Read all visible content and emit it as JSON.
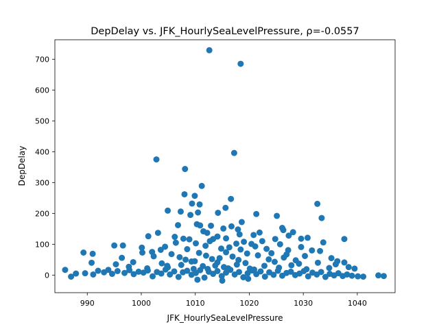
{
  "chart_data": {
    "type": "scatter",
    "title": "DepDelay vs. JFK_HourlySeaLevelPressure, ρ=-0.0557",
    "xlabel": "JFK_HourlySeaLevelPressure",
    "ylabel": "DepDelay",
    "xlim": [
      984.0,
      1047.0
    ],
    "ylim": [
      -57.0,
      763.0
    ],
    "xticks": [
      990,
      1000,
      1010,
      1020,
      1030,
      1040
    ],
    "yticks": [
      0,
      100,
      200,
      300,
      400,
      500,
      600,
      700
    ],
    "grid": false,
    "legend": "none",
    "marker_color": "#1f77b4",
    "points": [
      [
        1012.6,
        729
      ],
      [
        1018.4,
        685
      ],
      [
        1017.2,
        396
      ],
      [
        1002.8,
        375
      ],
      [
        1008.1,
        344
      ],
      [
        1011.2,
        289
      ],
      [
        1008.0,
        262
      ],
      [
        1009.9,
        257
      ],
      [
        1016.6,
        247
      ],
      [
        1009.4,
        232
      ],
      [
        1010.8,
        229
      ],
      [
        1032.6,
        231
      ],
      [
        1015.6,
        218
      ],
      [
        1004.9,
        209
      ],
      [
        1007.3,
        206
      ],
      [
        1010.5,
        203
      ],
      [
        1014.2,
        202
      ],
      [
        1021.3,
        198
      ],
      [
        1025.1,
        192
      ],
      [
        1009.1,
        195
      ],
      [
        1033.4,
        185
      ],
      [
        1018.6,
        172
      ],
      [
        1010.3,
        165
      ],
      [
        1006.8,
        162
      ],
      [
        1010.9,
        161
      ],
      [
        1012.9,
        160
      ],
      [
        1016.7,
        158
      ],
      [
        1015.2,
        151
      ],
      [
        1026.1,
        153
      ],
      [
        1017.9,
        148
      ],
      [
        1026.3,
        146
      ],
      [
        1011.5,
        142
      ],
      [
        1028.1,
        139
      ],
      [
        1003.1,
        137
      ],
      [
        1012.2,
        137
      ],
      [
        1021.9,
        138
      ],
      [
        1018.2,
        132
      ],
      [
        1020.8,
        130
      ],
      [
        1027.3,
        128
      ],
      [
        1001.3,
        126
      ],
      [
        1006.2,
        124
      ],
      [
        1014.1,
        125
      ],
      [
        1007.8,
        118
      ],
      [
        1008.9,
        116
      ],
      [
        1013.3,
        117
      ],
      [
        1015.7,
        119
      ],
      [
        1024.8,
        117
      ],
      [
        1029.6,
        118
      ],
      [
        1030.8,
        121
      ],
      [
        1037.6,
        117
      ],
      [
        1012.7,
        110
      ],
      [
        1019.0,
        108
      ],
      [
        1022.4,
        110
      ],
      [
        1006.4,
        105
      ],
      [
        1010.1,
        103
      ],
      [
        1017.6,
        102
      ],
      [
        1020.4,
        101
      ],
      [
        1025.7,
        100
      ],
      [
        1033.7,
        106
      ],
      [
        995.0,
        96
      ],
      [
        996.6,
        96
      ],
      [
        1000.1,
        89
      ],
      [
        1004.4,
        92
      ],
      [
        1011.9,
        95
      ],
      [
        1016.3,
        90
      ],
      [
        1021.1,
        93
      ],
      [
        1029.6,
        91
      ],
      [
        1003.6,
        82
      ],
      [
        1008.5,
        84
      ],
      [
        1014.8,
        86
      ],
      [
        1018.4,
        83
      ],
      [
        1023.2,
        85
      ],
      [
        1027.2,
        81
      ],
      [
        1031.6,
        80
      ],
      [
        1033.1,
        78
      ],
      [
        989.3,
        73
      ],
      [
        991.0,
        69
      ],
      [
        1000.2,
        73
      ],
      [
        1002.0,
        75
      ],
      [
        1005.6,
        68
      ],
      [
        1010.7,
        72
      ],
      [
        1015.7,
        74
      ],
      [
        1019.6,
        70
      ],
      [
        1024.1,
        71
      ],
      [
        1026.9,
        67
      ],
      [
        996.4,
        56
      ],
      [
        1002.3,
        61
      ],
      [
        1007.1,
        58
      ],
      [
        1012.0,
        63
      ],
      [
        1016.9,
        60
      ],
      [
        1021.6,
        64
      ],
      [
        1026.4,
        57
      ],
      [
        1030.3,
        62
      ],
      [
        1035.2,
        55
      ],
      [
        990.8,
        40
      ],
      [
        995.3,
        35
      ],
      [
        998.5,
        42
      ],
      [
        1003.8,
        38
      ],
      [
        1009.3,
        44
      ],
      [
        1014.1,
        41
      ],
      [
        1019.3,
        39
      ],
      [
        1024.7,
        43
      ],
      [
        1029.2,
        37
      ],
      [
        1032.7,
        40
      ],
      [
        1036.3,
        45
      ],
      [
        1037.6,
        41
      ],
      [
        1036.0,
        35
      ],
      [
        997.7,
        27
      ],
      [
        1001.1,
        22
      ],
      [
        1004.9,
        25
      ],
      [
        1009.7,
        20
      ],
      [
        1015.3,
        26
      ],
      [
        1020.1,
        21
      ],
      [
        1025.5,
        24
      ],
      [
        1030.6,
        19
      ],
      [
        1034.8,
        23
      ],
      [
        1038.4,
        26
      ],
      [
        1039.5,
        21
      ],
      [
        985.9,
        17
      ],
      [
        987.9,
        5
      ],
      [
        987.0,
        -5
      ],
      [
        989.6,
        6
      ],
      [
        991.1,
        2
      ],
      [
        992.0,
        14
      ],
      [
        993.1,
        9
      ],
      [
        993.9,
        17
      ],
      [
        994.6,
        4
      ],
      [
        995.6,
        13
      ],
      [
        996.9,
        7
      ],
      [
        997.8,
        16
      ],
      [
        998.6,
        3
      ],
      [
        999.5,
        11
      ],
      [
        1000.4,
        8
      ],
      [
        1001.2,
        15
      ],
      [
        1002.1,
        -4
      ],
      [
        1002.9,
        10
      ],
      [
        1003.7,
        5
      ],
      [
        1004.5,
        18
      ],
      [
        1005.3,
        2
      ],
      [
        1006.1,
        12
      ],
      [
        1006.9,
        -6
      ],
      [
        1007.7,
        9
      ],
      [
        1008.5,
        14
      ],
      [
        1009.3,
        1
      ],
      [
        1010.1,
        7
      ],
      [
        1010.9,
        16
      ],
      [
        1011.7,
        -8
      ],
      [
        1012.5,
        11
      ],
      [
        1013.3,
        4
      ],
      [
        1014.1,
        13
      ],
      [
        1014.9,
        -3
      ],
      [
        1015.7,
        8
      ],
      [
        1016.5,
        17
      ],
      [
        1017.3,
        2
      ],
      [
        1018.1,
        10
      ],
      [
        1018.9,
        -7
      ],
      [
        1019.7,
        6
      ],
      [
        1020.5,
        15
      ],
      [
        1021.3,
        3
      ],
      [
        1022.1,
        12
      ],
      [
        1022.9,
        -5
      ],
      [
        1023.7,
        9
      ],
      [
        1024.5,
        1
      ],
      [
        1025.3,
        14
      ],
      [
        1026.1,
        -2
      ],
      [
        1026.9,
        7
      ],
      [
        1027.7,
        11
      ],
      [
        1028.5,
        0
      ],
      [
        1029.3,
        5
      ],
      [
        1030.1,
        13
      ],
      [
        1030.9,
        -4
      ],
      [
        1031.7,
        8
      ],
      [
        1032.5,
        2
      ],
      [
        1033.3,
        10
      ],
      [
        1034.1,
        -6
      ],
      [
        1034.9,
        4
      ],
      [
        1035.7,
        -1
      ],
      [
        1036.5,
        6
      ],
      [
        1037.3,
        -3
      ],
      [
        1038.1,
        2
      ],
      [
        1039.0,
        -2
      ],
      [
        1040.1,
        -4
      ],
      [
        1041.1,
        -5
      ],
      [
        1043.9,
        -1
      ],
      [
        1044.9,
        -3
      ],
      [
        1004.8,
        30
      ],
      [
        1007.4,
        33
      ],
      [
        1011.4,
        29
      ],
      [
        1013.7,
        31
      ],
      [
        1017.7,
        34
      ],
      [
        1022.8,
        30
      ],
      [
        1027.8,
        32
      ],
      [
        1008.2,
        50
      ],
      [
        1013.1,
        52
      ],
      [
        1018.0,
        49
      ],
      [
        1023.6,
        51
      ],
      [
        1028.6,
        48
      ],
      [
        1010.4,
        -15
      ],
      [
        1015.0,
        -18
      ],
      [
        1019.8,
        -12
      ],
      [
        1012.3,
        20
      ],
      [
        1016.1,
        22
      ],
      [
        1020.9,
        18
      ],
      [
        1009.9,
        45
      ],
      [
        1014.5,
        55
      ]
    ]
  }
}
